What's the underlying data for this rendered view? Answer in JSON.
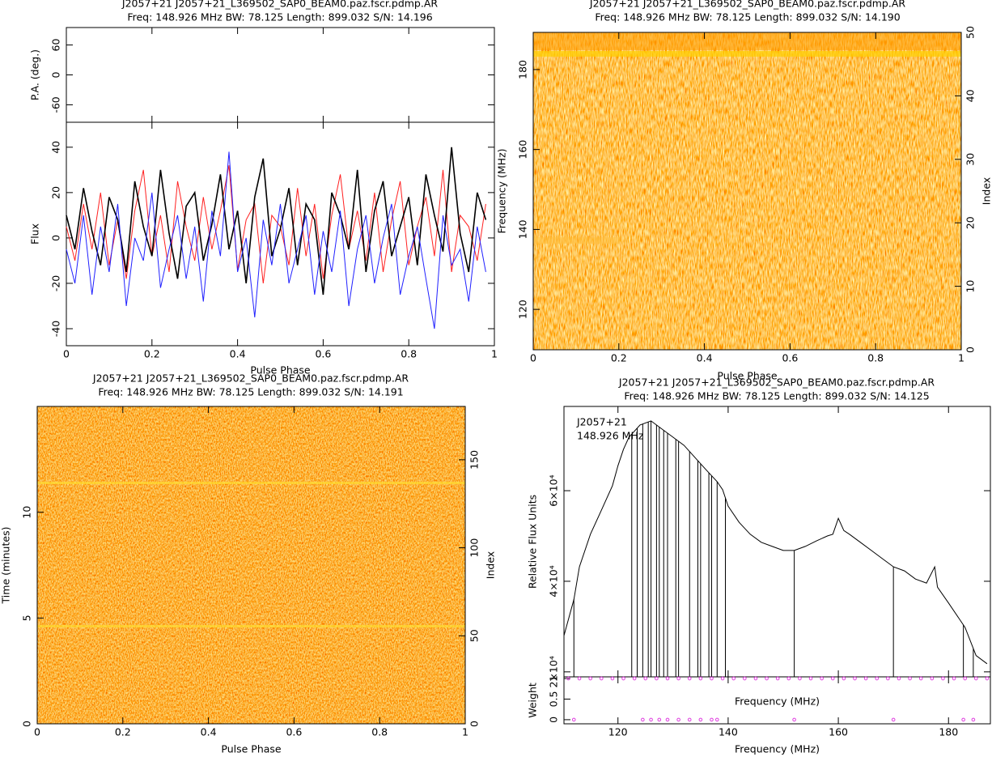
{
  "chart_data": [
    {
      "type": "line",
      "title": "J2057+21  J2057+21_L369502_SAP0_BEAM0.paz.fscr.pdmp.AR",
      "subtitle": "Freq: 148.926 MHz BW: 78.125 Length: 899.032 S/N: 14.196",
      "xlabel": "Pulse Phase",
      "xlim": [
        0,
        1
      ],
      "xticks": [
        0,
        0.2,
        0.4,
        0.6,
        0.8,
        1
      ],
      "pa": {
        "ylabel": "P.A. (deg.)",
        "ylim": [
          -95,
          95
        ],
        "yticks": [
          -60,
          0,
          60
        ]
      },
      "ylabel": "Flux",
      "ylim": [
        -47.5,
        51
      ],
      "yticks": [
        -40,
        -20,
        0,
        20,
        40
      ],
      "x": [
        0,
        0.02,
        0.04,
        0.06,
        0.08,
        0.1,
        0.12,
        0.14,
        0.16,
        0.18,
        0.2,
        0.22,
        0.24,
        0.26,
        0.28,
        0.3,
        0.32,
        0.34,
        0.36,
        0.38,
        0.4,
        0.42,
        0.44,
        0.46,
        0.48,
        0.5,
        0.52,
        0.54,
        0.56,
        0.58,
        0.6,
        0.62,
        0.64,
        0.66,
        0.68,
        0.7,
        0.72,
        0.74,
        0.76,
        0.78,
        0.8,
        0.82,
        0.84,
        0.86,
        0.88,
        0.9,
        0.92,
        0.94,
        0.96,
        0.98
      ],
      "series": [
        {
          "color": "#ff2020",
          "values": [
            5,
            -10,
            15,
            -5,
            20,
            -12,
            8,
            -18,
            12,
            30,
            -8,
            10,
            -15,
            25,
            5,
            -10,
            18,
            -5,
            12,
            32,
            -14,
            8,
            15,
            -20,
            10,
            5,
            -12,
            22,
            -8,
            15,
            -18,
            10,
            28,
            -5,
            12,
            -10,
            20,
            -15,
            8,
            25,
            -12,
            5,
            18,
            -8,
            30,
            -15,
            10,
            5,
            -10,
            15
          ]
        },
        {
          "color": "#000000",
          "values": [
            10,
            -5,
            22,
            3,
            -12,
            18,
            8,
            -15,
            25,
            5,
            -8,
            30,
            2,
            -18,
            14,
            20,
            -10,
            6,
            28,
            -5,
            12,
            -20,
            18,
            35,
            -8,
            4,
            22,
            -12,
            15,
            8,
            -25,
            20,
            10,
            -5,
            30,
            -15,
            12,
            25,
            -8,
            5,
            18,
            -12,
            28,
            10,
            -6,
            40,
            2,
            -15,
            20,
            8
          ]
        },
        {
          "color": "#2020ff",
          "values": [
            -5,
            -20,
            10,
            -25,
            5,
            -15,
            15,
            -30,
            0,
            -10,
            20,
            -22,
            -5,
            10,
            -18,
            5,
            -28,
            12,
            -8,
            38,
            -15,
            0,
            -35,
            8,
            -12,
            15,
            -20,
            -5,
            10,
            -25,
            3,
            -15,
            12,
            -30,
            -5,
            10,
            -20,
            0,
            15,
            -25,
            -8,
            5,
            -18,
            -40,
            10,
            -12,
            -5,
            -28,
            5,
            -15
          ]
        }
      ]
    },
    {
      "type": "heatmap",
      "title": "J2057+21  J2057+21_L369502_SAP0_BEAM0.paz.fscr.pdmp.AR",
      "subtitle": "Freq: 148.926 MHz BW: 78.125 Length: 899.032 S/N: 14.190",
      "xlabel": "Pulse Phase",
      "xlim": [
        0,
        1
      ],
      "xticks": [
        0,
        0.2,
        0.4,
        0.6,
        0.8,
        1
      ],
      "ylabel": "Frequency (MHz)",
      "ylim": [
        109.9,
        189.3
      ],
      "yticks": [
        120,
        140,
        160,
        180
      ],
      "y2label": "Index",
      "y2lim": [
        0,
        50
      ],
      "y2ticks": [
        0,
        10,
        20,
        30,
        40,
        50
      ]
    },
    {
      "type": "heatmap",
      "title": "J2057+21  J2057+21_L369502_SAP0_BEAM0.paz.fscr.pdmp.AR",
      "subtitle": "Freq: 148.926 MHz BW: 78.125 Length: 899.032 S/N: 14.191",
      "xlabel": "Pulse Phase",
      "xlim": [
        0,
        1
      ],
      "xticks": [
        0,
        0.2,
        0.4,
        0.6,
        0.8,
        1
      ],
      "ylabel": "Time (minutes)",
      "ylim": [
        0,
        15
      ],
      "yticks": [
        0,
        5,
        10
      ],
      "y2label": "Index",
      "y2lim": [
        0,
        180.3
      ],
      "y2ticks": [
        0,
        50,
        100,
        150
      ]
    },
    {
      "type": "bandpass",
      "title": "J2057+21  J2057+21_L369502_SAP0_BEAM0.paz.fscr.pdmp.AR",
      "subtitle": "Freq: 148.926 MHz BW: 78.125 Length: 899.032 S/N: 14.125",
      "annotations": [
        "J2057+21",
        "148.926 MHz"
      ],
      "xlabel": "Frequency (MHz)",
      "xlim": [
        110.2,
        187.6
      ],
      "xticks": [
        120,
        140,
        160,
        180
      ],
      "ylabel": "Relative Flux Units",
      "ylim": [
        18900,
        78600
      ],
      "yticks": [
        {
          "value": 20000,
          "label": "2×10⁴"
        },
        {
          "value": 40000,
          "label": "4×10⁴"
        },
        {
          "value": 60000,
          "label": "6×10⁴"
        }
      ],
      "color": "#000000",
      "x": [
        110.2,
        112,
        113,
        115,
        117,
        119,
        120,
        121,
        122,
        124,
        126,
        128,
        130,
        132,
        134,
        136,
        138,
        139,
        140,
        142,
        144,
        146,
        148,
        150,
        152,
        154,
        156,
        158,
        159,
        160,
        161,
        162,
        164,
        166,
        168,
        170,
        172,
        174,
        176,
        177.5,
        178,
        180,
        182,
        183,
        185,
        187
      ],
      "values": [
        28000,
        36000,
        43200,
        50400,
        55700,
        61100,
        65500,
        69100,
        71800,
        74500,
        75400,
        73600,
        71800,
        70000,
        67300,
        64600,
        62000,
        60200,
        56600,
        53000,
        50400,
        48600,
        47700,
        46800,
        46800,
        47700,
        48900,
        50000,
        50400,
        53900,
        51200,
        50400,
        48600,
        46800,
        45000,
        43200,
        42300,
        40500,
        39600,
        43200,
        38700,
        35200,
        31600,
        29800,
        23600,
        21800
      ],
      "zapped": [
        112,
        122.5,
        123.5,
        124.5,
        125.5,
        126,
        127,
        127.5,
        128.3,
        129,
        130.5,
        131,
        133,
        134.5,
        135,
        136.5,
        137,
        138,
        139.5,
        152,
        170,
        182.7,
        184.5
      ],
      "weight": {
        "ylabel": "Weight",
        "xlabel": "Frequency (MHz)",
        "ylim": [
          -0.1,
          1.04
        ],
        "yticks": [
          0,
          0.5,
          1
        ],
        "color": "#e040e0",
        "x": [
          111,
          113,
          115,
          117,
          119,
          121,
          123,
          125,
          127,
          129,
          131,
          133,
          135,
          137,
          139,
          141,
          143,
          145,
          147,
          149,
          151,
          153,
          155,
          157,
          159,
          161,
          163,
          165,
          167,
          169,
          171,
          173,
          175,
          177,
          179,
          181,
          183,
          185,
          187,
          112,
          124.5,
          126,
          127.5,
          129,
          131,
          133,
          135,
          137,
          138,
          152,
          170,
          182.7,
          184.5
        ],
        "values": [
          1,
          1,
          1,
          1,
          1,
          1,
          1,
          1,
          1,
          1,
          1,
          1,
          1,
          1,
          1,
          1,
          1,
          1,
          1,
          1,
          1,
          1,
          1,
          1,
          1,
          1,
          1,
          1,
          1,
          1,
          1,
          1,
          1,
          1,
          1,
          1,
          1,
          1,
          1,
          0,
          0,
          0,
          0,
          0,
          0,
          0,
          0,
          0,
          0,
          0,
          0,
          0,
          0
        ]
      }
    }
  ]
}
